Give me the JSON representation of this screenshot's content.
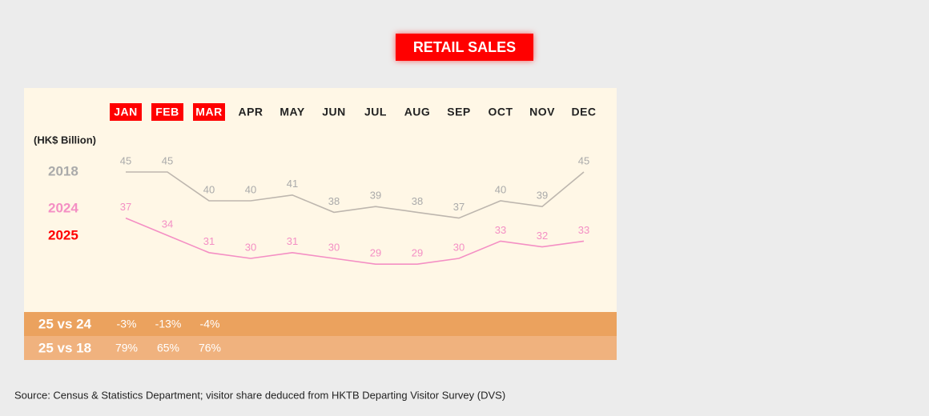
{
  "chart_data": {
    "type": "line",
    "title": "RETAIL SALES",
    "unit_label": "(HK$ Billion)",
    "categories": [
      "JAN",
      "FEB",
      "MAR",
      "APR",
      "MAY",
      "JUN",
      "JUL",
      "AUG",
      "SEP",
      "OCT",
      "NOV",
      "DEC"
    ],
    "highlighted": [
      true,
      true,
      true,
      false,
      false,
      false,
      false,
      false,
      false,
      false,
      false,
      false
    ],
    "highlight_color": "#ff0000",
    "ylim": [
      25,
      50
    ],
    "series": [
      {
        "name": "2018",
        "color": "#bdb6ae",
        "label_color": "#aaaaaa",
        "values": [
          45,
          45,
          40,
          40,
          41,
          38,
          39,
          38,
          37,
          40,
          39,
          45
        ]
      },
      {
        "name": "2024",
        "color": "#f48fc4",
        "label_color": "#f48fc4",
        "values": [
          37,
          34,
          31,
          30,
          31,
          30,
          29,
          29,
          30,
          33,
          32,
          33
        ]
      },
      {
        "name": "2025",
        "color": "#ff0000",
        "label_color": "#ff0000",
        "values": [
          null,
          null,
          null,
          null,
          null,
          null,
          null,
          null,
          null,
          null,
          null,
          null
        ]
      }
    ],
    "table": {
      "rows": [
        {
          "label": "25 vs 24",
          "color": "#eba25e",
          "values": [
            "-3%",
            "-13%",
            "-4%"
          ]
        },
        {
          "label": "25 vs 18",
          "color": "#f0b27e",
          "values": [
            "79%",
            "65%",
            "76%"
          ]
        }
      ]
    },
    "source": "Source: Census & Statistics Department; visitor share deduced from HKTB Departing Visitor Survey (DVS)"
  }
}
